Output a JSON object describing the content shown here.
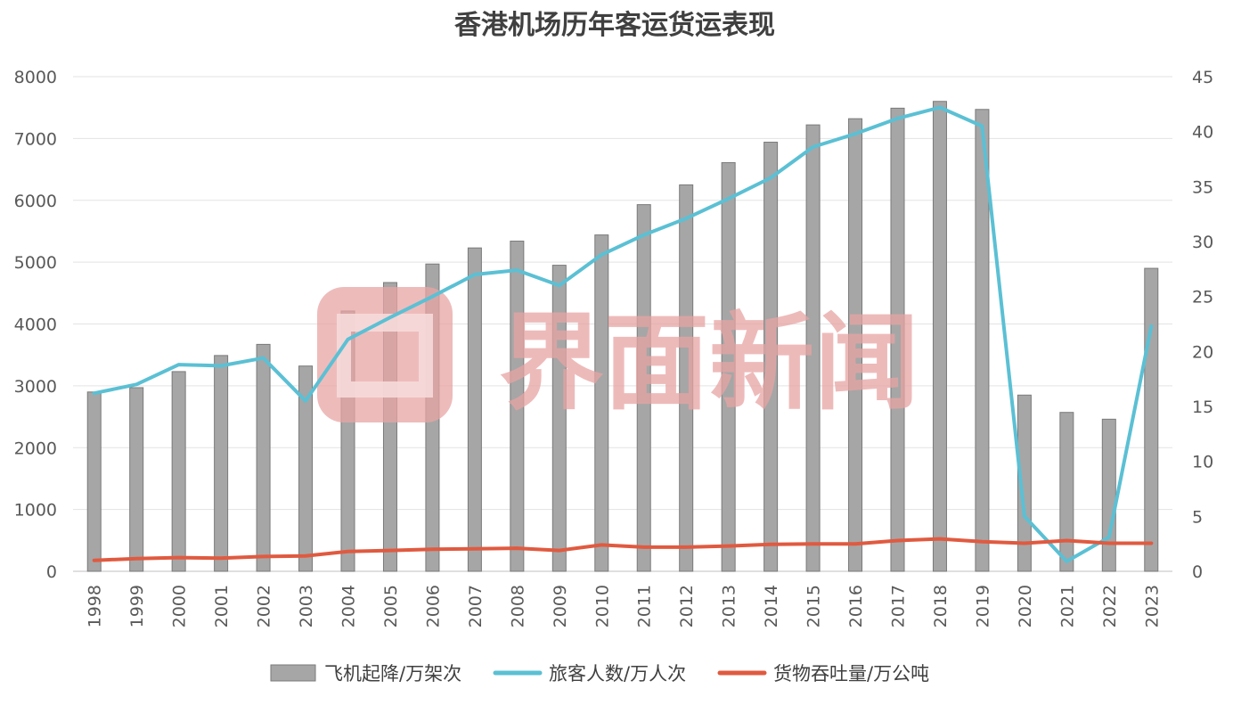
{
  "chart_data": {
    "type": "bar",
    "title": "香港机场历年客运货运表现",
    "categories": [
      "1998",
      "1999",
      "2000",
      "2001",
      "2002",
      "2003",
      "2004",
      "2005",
      "2006",
      "2007",
      "2008",
      "2009",
      "2010",
      "2011",
      "2012",
      "2013",
      "2014",
      "2015",
      "2016",
      "2017",
      "2018",
      "2019",
      "2020",
      "2021",
      "2022",
      "2023"
    ],
    "series": [
      {
        "name": "飞机起降/万架次",
        "kind": "bar",
        "axis": "left",
        "color": "#a6a6a6",
        "values": [
          2900,
          2970,
          3230,
          3490,
          3670,
          3320,
          4210,
          4670,
          4970,
          5230,
          5340,
          4950,
          5440,
          5930,
          6250,
          6610,
          6940,
          7220,
          7320,
          7490,
          7600,
          7470,
          2850,
          2570,
          2460,
          4900
        ]
      },
      {
        "name": "旅客人数/万人次",
        "kind": "line",
        "axis": "right",
        "color": "#5bc0d4",
        "values": [
          16.2,
          17.0,
          18.8,
          18.7,
          19.4,
          15.5,
          21.1,
          23.1,
          25.0,
          27.0,
          27.4,
          26.0,
          28.8,
          30.6,
          32.1,
          33.9,
          35.8,
          38.6,
          39.8,
          41.2,
          42.2,
          40.5,
          5.0,
          0.9,
          3.1,
          22.3
        ]
      },
      {
        "name": "货物吞吐量/万公吨",
        "kind": "line",
        "axis": "right",
        "color": "#e05a40",
        "values": [
          1.0,
          1.15,
          1.25,
          1.2,
          1.35,
          1.4,
          1.8,
          1.9,
          2.0,
          2.05,
          2.1,
          1.9,
          2.4,
          2.2,
          2.2,
          2.3,
          2.45,
          2.5,
          2.5,
          2.8,
          2.95,
          2.7,
          2.55,
          2.8,
          2.55,
          2.55
        ]
      }
    ],
    "y_left": {
      "min": 0,
      "max": 8000,
      "ticks": [
        "0",
        "1000",
        "2000",
        "3000",
        "4000",
        "5000",
        "6000",
        "7000",
        "8000"
      ]
    },
    "y_right": {
      "min": 0,
      "max": 45,
      "ticks": [
        "0",
        "5",
        "10",
        "15",
        "20",
        "25",
        "30",
        "35",
        "40",
        "45"
      ]
    },
    "grid": true,
    "legend_position": "bottom"
  },
  "watermark": {
    "text": "界面新闻",
    "color": "#e8a4a4"
  }
}
